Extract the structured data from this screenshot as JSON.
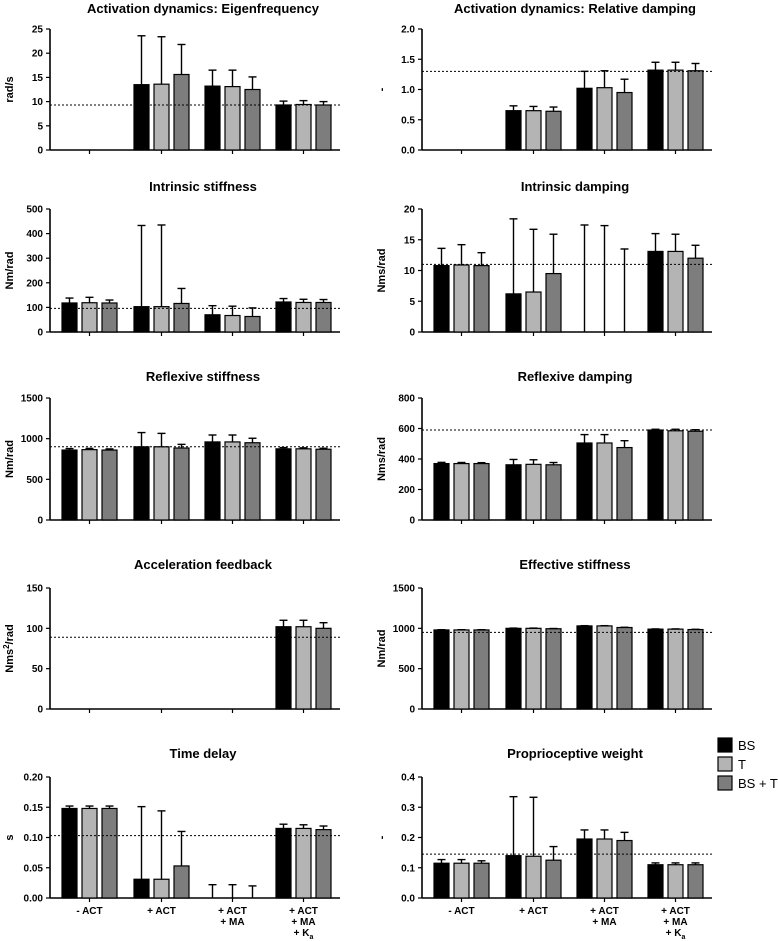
{
  "legend": [
    {
      "name": "BS",
      "color": "#000000"
    },
    {
      "name": "T",
      "color": "#b4b4b4"
    },
    {
      "name": "BS + T",
      "color": "#7d7d7d"
    }
  ],
  "chart_data": [
    {
      "type": "bar",
      "title": "Activation dynamics: Eigenfrequency",
      "ylabel": "rad/s",
      "ylim": [
        0,
        25
      ],
      "yticks": [
        0,
        5,
        10,
        15,
        20,
        25
      ],
      "ref": 9.3,
      "categories": [
        "- ACT",
        "+ ACT",
        "+ ACT + MA",
        "+ ACT + MA + Ka"
      ],
      "show_categories": false,
      "series": [
        {
          "name": "BS",
          "values": [
            null,
            13.5,
            13.2,
            9.3
          ],
          "errors": [
            null,
            10.1,
            3.3,
            0.8
          ]
        },
        {
          "name": "T",
          "values": [
            null,
            13.6,
            13.1,
            9.4
          ],
          "errors": [
            null,
            9.8,
            3.4,
            0.8
          ]
        },
        {
          "name": "BS + T",
          "values": [
            null,
            15.6,
            12.5,
            9.3
          ],
          "errors": [
            null,
            6.2,
            2.6,
            0.7
          ]
        }
      ]
    },
    {
      "type": "bar",
      "title": "Activation dynamics: Relative damping",
      "ylabel": "-",
      "ylim": [
        0,
        2.0
      ],
      "yticks": [
        "0.0",
        "0.5",
        "1.0",
        "1.5",
        "2.0"
      ],
      "ref": 1.3,
      "categories": [
        "- ACT",
        "+ ACT",
        "+ ACT + MA",
        "+ ACT + MA + Ka"
      ],
      "show_categories": false,
      "series": [
        {
          "name": "BS",
          "values": [
            null,
            0.65,
            1.02,
            1.32
          ],
          "errors": [
            null,
            0.08,
            0.28,
            0.13
          ]
        },
        {
          "name": "T",
          "values": [
            null,
            0.65,
            1.03,
            1.32
          ],
          "errors": [
            null,
            0.07,
            0.28,
            0.13
          ]
        },
        {
          "name": "BS + T",
          "values": [
            null,
            0.64,
            0.95,
            1.31
          ],
          "errors": [
            null,
            0.07,
            0.22,
            0.12
          ]
        }
      ]
    },
    {
      "type": "bar",
      "title": "Intrinsic stiffness",
      "ylabel": "Nm/rad",
      "ylim": [
        0,
        500
      ],
      "yticks": [
        0,
        100,
        200,
        300,
        400,
        500
      ],
      "ref": 96,
      "categories": [
        "- ACT",
        "+ ACT",
        "+ ACT + MA",
        "+ ACT + MA + Ka"
      ],
      "show_categories": false,
      "series": [
        {
          "name": "BS",
          "values": [
            118,
            103,
            70,
            122
          ],
          "errors": [
            20,
            330,
            37,
            14
          ]
        },
        {
          "name": "T",
          "values": [
            119,
            103,
            67,
            120
          ],
          "errors": [
            22,
            332,
            38,
            13
          ]
        },
        {
          "name": "BS + T",
          "values": [
            118,
            116,
            63,
            120
          ],
          "errors": [
            12,
            61,
            35,
            12
          ]
        }
      ]
    },
    {
      "type": "bar",
      "title": "Intrinsic damping",
      "ylabel": "Nms/rad",
      "ylim": [
        0,
        20
      ],
      "yticks": [
        0,
        5,
        10,
        15,
        20
      ],
      "ref": 11.0,
      "categories": [
        "- ACT",
        "+ ACT",
        "+ ACT + MA",
        "+ ACT + MA + Ka"
      ],
      "show_categories": false,
      "series": [
        {
          "name": "BS",
          "values": [
            10.8,
            6.2,
            0,
            13.1
          ],
          "errors": [
            2.8,
            12.2,
            17.4,
            2.9
          ]
        },
        {
          "name": "T",
          "values": [
            10.9,
            6.5,
            0,
            13.1
          ],
          "errors": [
            3.3,
            10.2,
            17.3,
            2.8
          ]
        },
        {
          "name": "BS + T",
          "values": [
            10.8,
            9.5,
            0,
            12.0
          ],
          "errors": [
            2.1,
            6.4,
            13.5,
            2.1
          ]
        }
      ]
    },
    {
      "type": "bar",
      "title": "Reflexive stiffness",
      "ylabel": "Nm/rad",
      "ylim": [
        0,
        1500
      ],
      "yticks": [
        0,
        500,
        1000,
        1500
      ],
      "ref": 900,
      "categories": [
        "- ACT",
        "+ ACT",
        "+ ACT + MA",
        "+ ACT + MA + Ka"
      ],
      "show_categories": false,
      "series": [
        {
          "name": "BS",
          "values": [
            860,
            900,
            960,
            875
          ],
          "errors": [
            18,
            175,
            85,
            15
          ]
        },
        {
          "name": "T",
          "values": [
            865,
            900,
            960,
            875
          ],
          "errors": [
            15,
            165,
            85,
            12
          ]
        },
        {
          "name": "BS + T",
          "values": [
            860,
            885,
            950,
            870
          ],
          "errors": [
            14,
            45,
            55,
            12
          ]
        }
      ]
    },
    {
      "type": "bar",
      "title": "Reflexive damping",
      "ylabel": "Nms/rad",
      "ylim": [
        0,
        800
      ],
      "yticks": [
        0,
        200,
        400,
        600,
        800
      ],
      "ref": 590,
      "categories": [
        "- ACT",
        "+ ACT",
        "+ ACT + MA",
        "+ ACT + MA + Ka"
      ],
      "show_categories": false,
      "series": [
        {
          "name": "BS",
          "values": [
            370,
            362,
            505,
            590
          ],
          "errors": [
            8,
            35,
            55,
            5
          ]
        },
        {
          "name": "T",
          "values": [
            370,
            365,
            505,
            585
          ],
          "errors": [
            7,
            30,
            55,
            10
          ]
        },
        {
          "name": "BS + T",
          "values": [
            370,
            362,
            475,
            582
          ],
          "errors": [
            6,
            15,
            45,
            10
          ]
        }
      ]
    },
    {
      "type": "bar",
      "title": "Acceleration feedback",
      "ylabel": "Nms2/rad",
      "ylabel_main": "Nms",
      "ylabel_sup": "2",
      "ylabel_tail": "/rad",
      "ylim": [
        0,
        150
      ],
      "yticks": [
        0,
        50,
        100,
        150
      ],
      "ref": 89,
      "categories": [
        "- ACT",
        "+ ACT",
        "+ ACT + MA",
        "+ ACT + MA + Ka"
      ],
      "show_categories": false,
      "series": [
        {
          "name": "BS",
          "values": [
            null,
            null,
            null,
            102
          ],
          "errors": [
            null,
            null,
            null,
            8
          ]
        },
        {
          "name": "T",
          "values": [
            null,
            null,
            null,
            102
          ],
          "errors": [
            null,
            null,
            null,
            8
          ]
        },
        {
          "name": "BS + T",
          "values": [
            null,
            null,
            null,
            100
          ],
          "errors": [
            null,
            null,
            null,
            7
          ]
        }
      ]
    },
    {
      "type": "bar",
      "title": "Effective stiffness",
      "ylabel": "Nm/rad",
      "ylim": [
        0,
        1500
      ],
      "yticks": [
        0,
        500,
        1000,
        1500
      ],
      "ref": 950,
      "categories": [
        "- ACT",
        "+ ACT",
        "+ ACT + MA",
        "+ ACT + MA + Ka"
      ],
      "show_categories": false,
      "series": [
        {
          "name": "BS",
          "values": [
            980,
            1000,
            1030,
            990
          ],
          "errors": [
            3,
            3,
            3,
            3
          ]
        },
        {
          "name": "T",
          "values": [
            980,
            1000,
            1030,
            990
          ],
          "errors": [
            3,
            3,
            3,
            3
          ]
        },
        {
          "name": "BS + T",
          "values": [
            980,
            995,
            1010,
            985
          ],
          "errors": [
            3,
            3,
            3,
            3
          ]
        }
      ]
    },
    {
      "type": "bar",
      "title": "Time delay",
      "ylabel": "s",
      "ylim": [
        0,
        0.2
      ],
      "yticks": [
        "0.00",
        "0.05",
        "0.10",
        "0.15",
        "0.20"
      ],
      "ref": 0.103,
      "categories": [
        "- ACT",
        "+ ACT",
        "+ ACT + MA",
        "+ ACT + MA + Ka"
      ],
      "show_categories": true,
      "series": [
        {
          "name": "BS",
          "values": [
            0.148,
            0.031,
            0,
            0.115
          ],
          "errors": [
            0.004,
            0.12,
            0.022,
            0.007
          ]
        },
        {
          "name": "T",
          "values": [
            0.148,
            0.031,
            0,
            0.115
          ],
          "errors": [
            0.004,
            0.113,
            0.022,
            0.006
          ]
        },
        {
          "name": "BS + T",
          "values": [
            0.148,
            0.053,
            0,
            0.113
          ],
          "errors": [
            0.004,
            0.057,
            0.02,
            0.006
          ]
        }
      ]
    },
    {
      "type": "bar",
      "title": "Proprioceptive weight",
      "ylabel": "-",
      "ylim": [
        0,
        0.4
      ],
      "yticks": [
        "0.0",
        "0.1",
        "0.2",
        "0.3",
        "0.4"
      ],
      "ref": 0.145,
      "categories": [
        "- ACT",
        "+ ACT",
        "+ ACT + MA",
        "+ ACT + MA + Ka"
      ],
      "show_categories": true,
      "series": [
        {
          "name": "BS",
          "values": [
            0.115,
            0.14,
            0.195,
            0.11
          ],
          "errors": [
            0.012,
            0.195,
            0.03,
            0.006
          ]
        },
        {
          "name": "T",
          "values": [
            0.115,
            0.138,
            0.195,
            0.11
          ],
          "errors": [
            0.012,
            0.195,
            0.03,
            0.006
          ]
        },
        {
          "name": "BS + T",
          "values": [
            0.115,
            0.125,
            0.19,
            0.11
          ],
          "errors": [
            0.008,
            0.045,
            0.027,
            0.006
          ]
        }
      ]
    }
  ]
}
